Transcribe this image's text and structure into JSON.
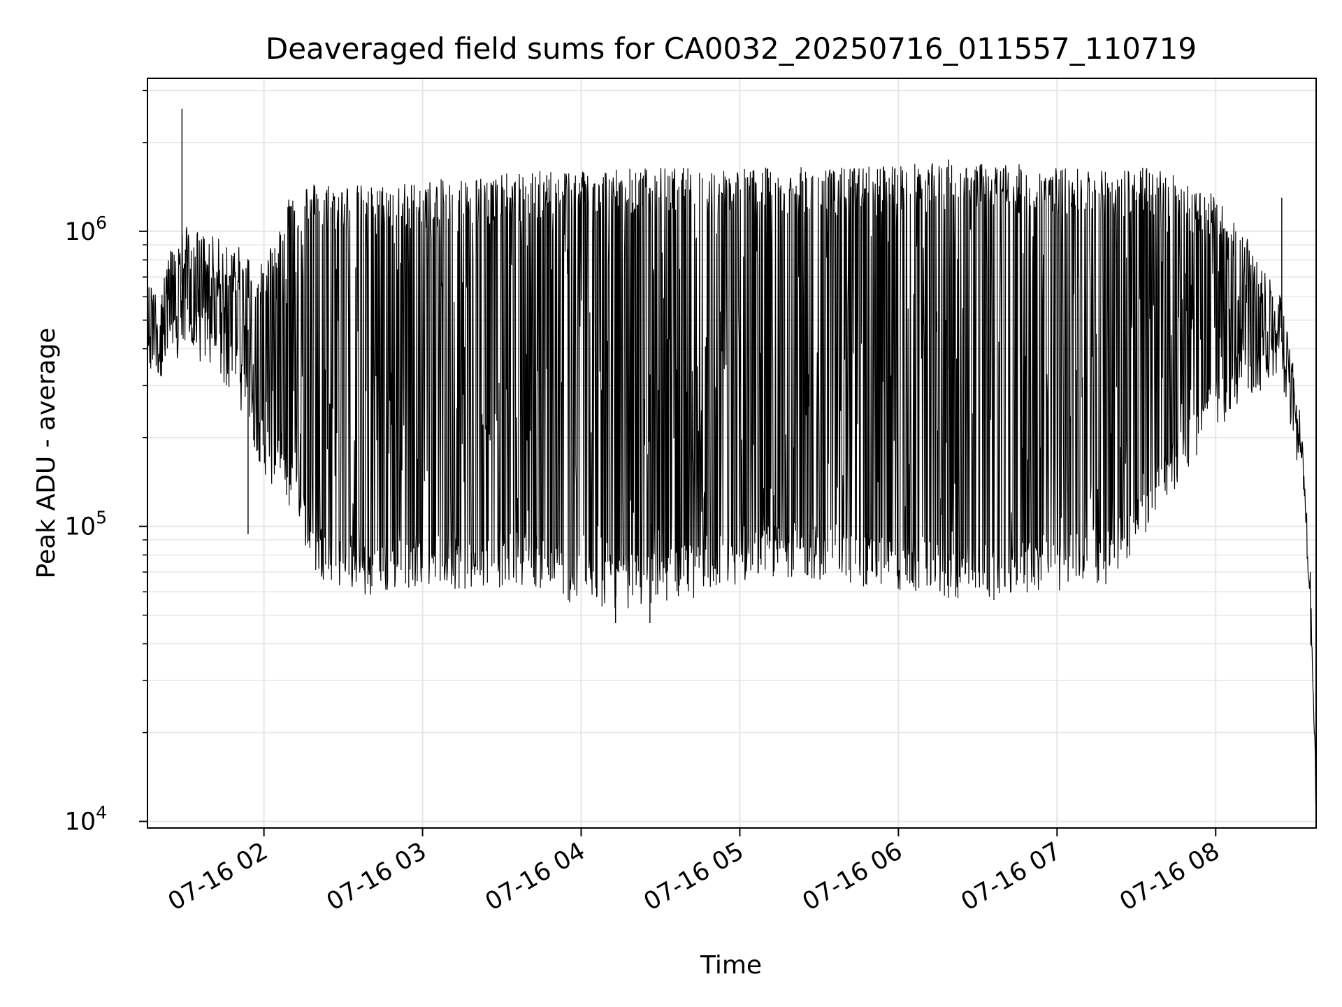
{
  "chart_data": {
    "type": "line",
    "title": "Deaveraged field sums for CA0032_20250716_011557_110719",
    "xlabel": "Time",
    "ylabel": "Peak ADU - average",
    "x_scale": "time",
    "y_scale": "log",
    "xlim": [
      "2025-07-16 01:15:57",
      "2025-07-16 08:38:00"
    ],
    "ylim": [
      9500,
      3300000
    ],
    "grid": true,
    "legend": "none",
    "line_color": "#000000",
    "x_ticks": [
      {
        "value": "2025-07-16 02:00",
        "label": "07-16 02"
      },
      {
        "value": "2025-07-16 03:00",
        "label": "07-16 03"
      },
      {
        "value": "2025-07-16 04:00",
        "label": "07-16 04"
      },
      {
        "value": "2025-07-16 05:00",
        "label": "07-16 05"
      },
      {
        "value": "2025-07-16 06:00",
        "label": "07-16 06"
      },
      {
        "value": "2025-07-16 07:00",
        "label": "07-16 07"
      },
      {
        "value": "2025-07-16 08:00",
        "label": "07-16 08"
      }
    ],
    "y_ticks": [
      {
        "value": 10000,
        "base": "10",
        "exp": "4"
      },
      {
        "value": 100000,
        "base": "10",
        "exp": "5"
      },
      {
        "value": 1000000,
        "base": "10",
        "exp": "6"
      }
    ],
    "series": [
      {
        "x": [
          "2025-07-16 01:16",
          "2025-07-16 01:30",
          "2025-07-16 01:40",
          "2025-07-16 01:50",
          "2025-07-16 02:00",
          "2025-07-16 02:10",
          "2025-07-16 02:20",
          "2025-07-16 02:40",
          "2025-07-16 03:00",
          "2025-07-16 03:20",
          "2025-07-16 03:40",
          "2025-07-16 04:00",
          "2025-07-16 04:20",
          "2025-07-16 04:40",
          "2025-07-16 05:00",
          "2025-07-16 05:20",
          "2025-07-16 05:40",
          "2025-07-16 06:00",
          "2025-07-16 06:20",
          "2025-07-16 06:40",
          "2025-07-16 07:00",
          "2025-07-16 07:20",
          "2025-07-16 07:40",
          "2025-07-16 08:00",
          "2025-07-16 08:10",
          "2025-07-16 08:20",
          "2025-07-16 08:28",
          "2025-07-16 08:33",
          "2025-07-16 08:36",
          "2025-07-16 08:38"
        ],
        "y_upper": [
          600000,
          950000,
          880000,
          820000,
          700000,
          1300000,
          1350000,
          1300000,
          1350000,
          1400000,
          1450000,
          1500000,
          1500000,
          1500000,
          1500000,
          1500000,
          1500000,
          1550000,
          1550000,
          1550000,
          1500000,
          1500000,
          1500000,
          1200000,
          900000,
          700000,
          450000,
          180000,
          60000,
          12000
        ],
        "y_lower": [
          400000,
          480000,
          450000,
          350000,
          200000,
          150000,
          90000,
          75000,
          85000,
          80000,
          85000,
          70000,
          70000,
          75000,
          85000,
          90000,
          85000,
          80000,
          75000,
          75000,
          80000,
          85000,
          150000,
          280000,
          350000,
          400000,
          300000,
          150000,
          50000,
          12000
        ],
        "spikes": [
          {
            "x": "2025-07-16 01:29",
            "y": 2600000
          },
          {
            "x": "2025-07-16 01:54",
            "y": 94000
          },
          {
            "x": "2025-07-16 03:47",
            "y": 1550000
          },
          {
            "x": "2025-07-16 04:13",
            "y": 47000
          },
          {
            "x": "2025-07-16 04:26",
            "y": 47000
          },
          {
            "x": "2025-07-16 06:19",
            "y": 1750000
          },
          {
            "x": "2025-07-16 08:25",
            "y": 1300000
          }
        ]
      }
    ]
  }
}
